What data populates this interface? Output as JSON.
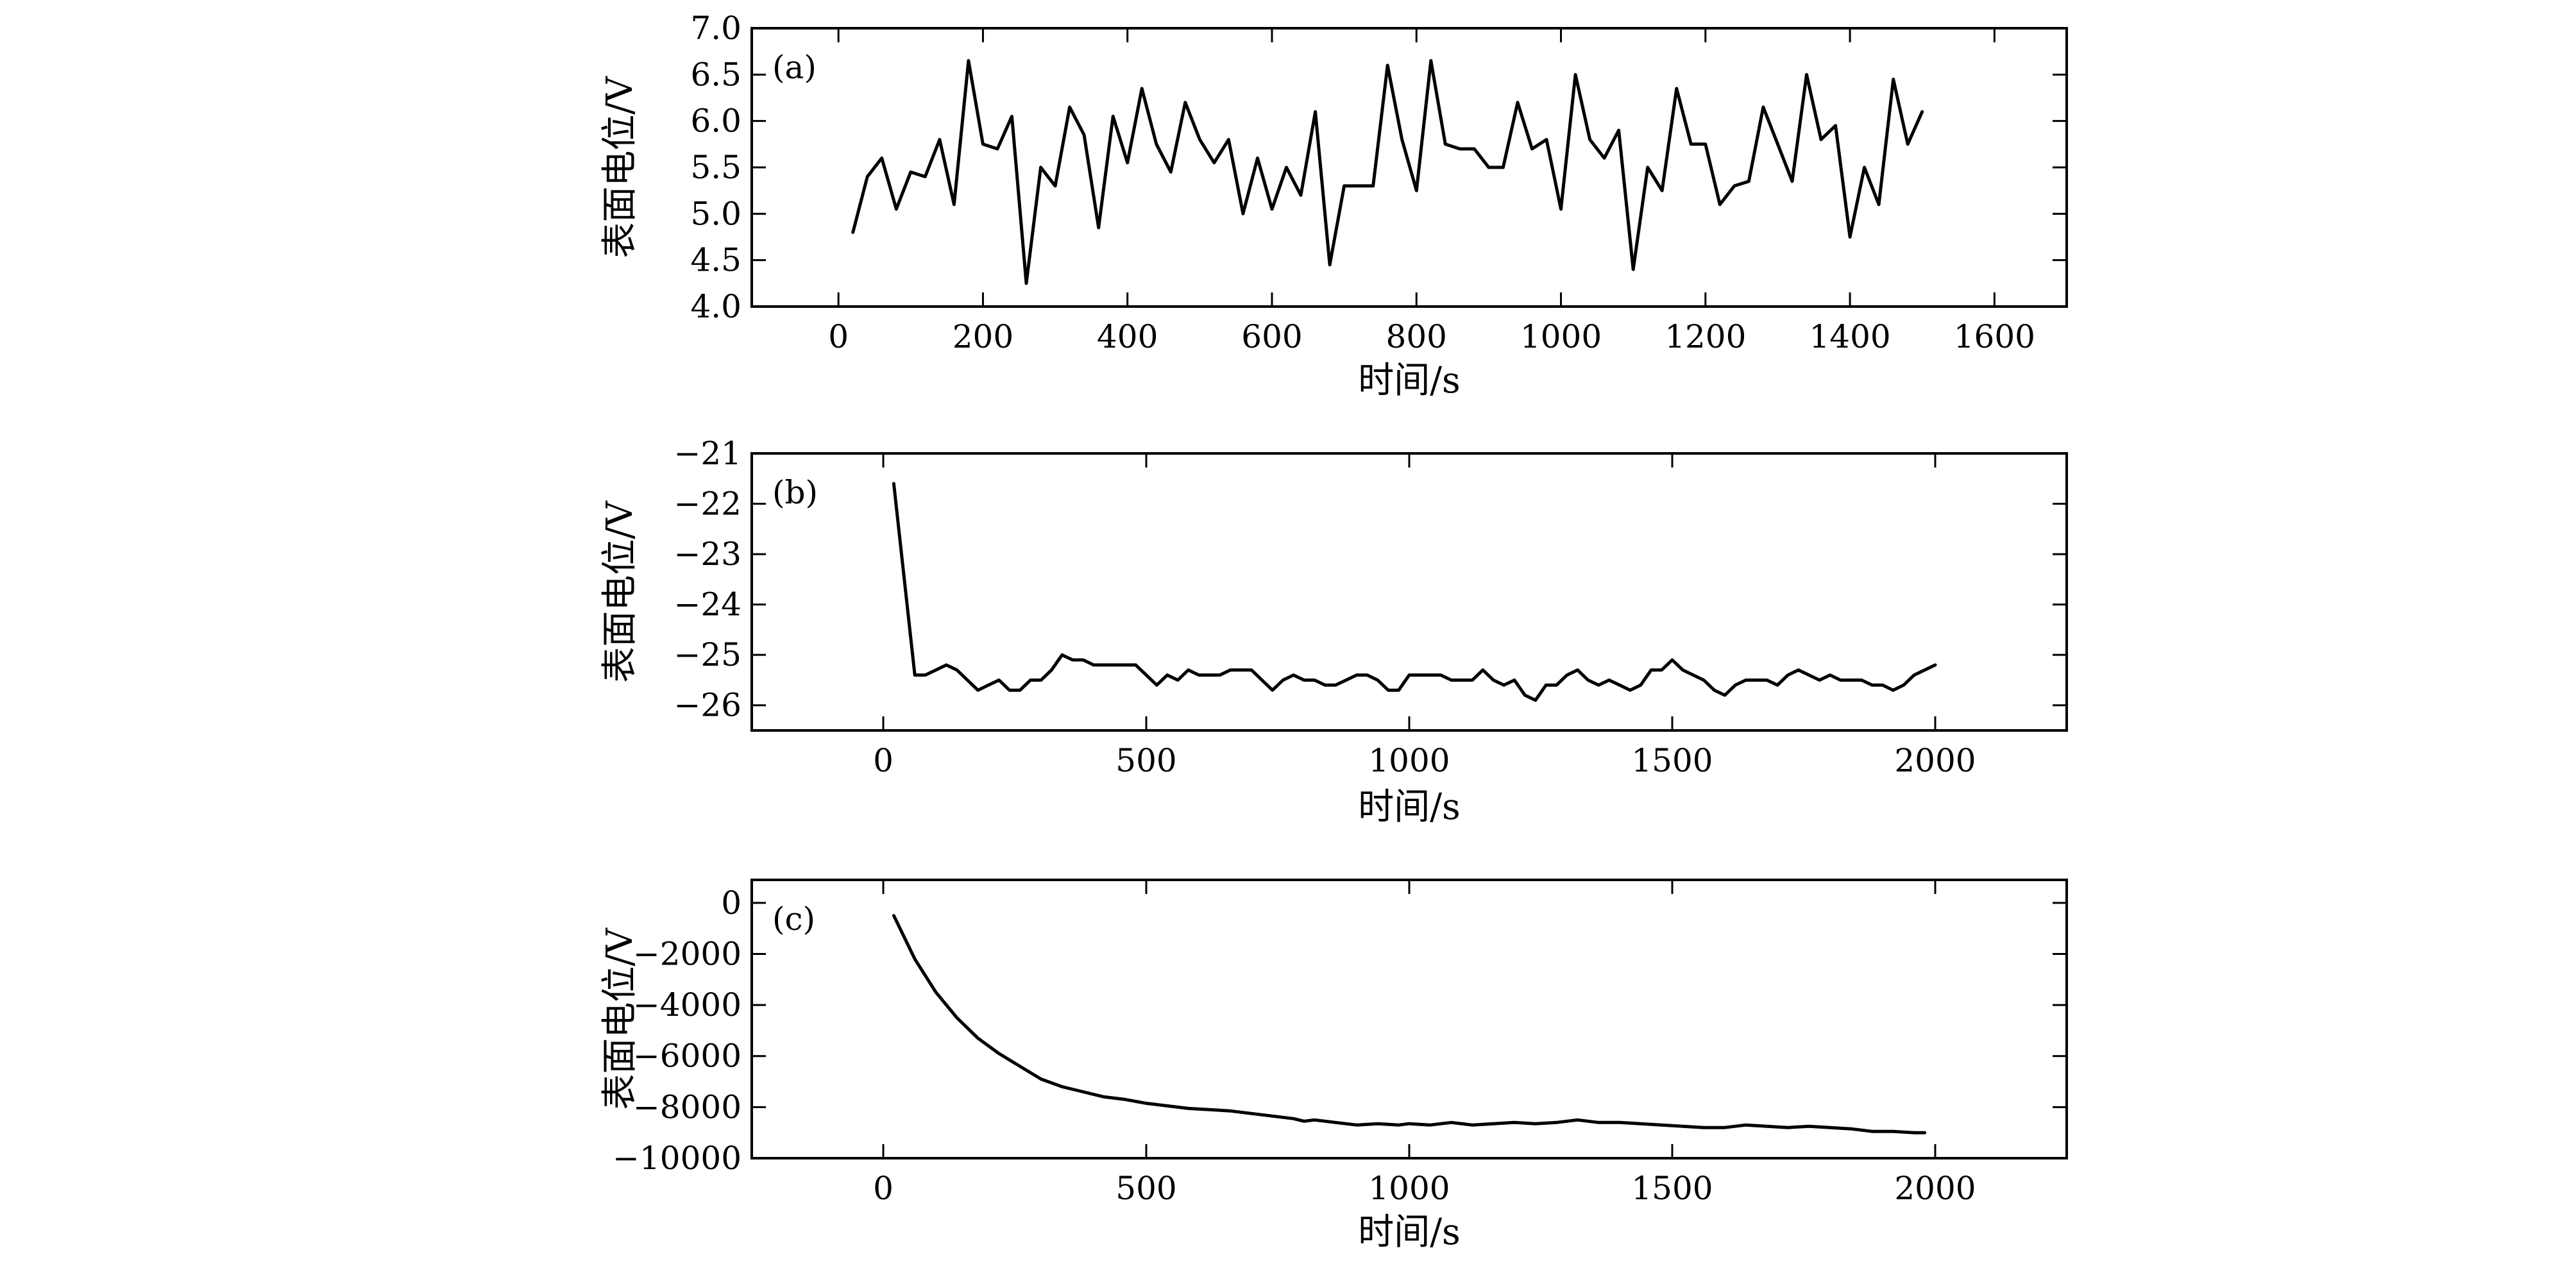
{
  "chart_data": [
    {
      "type": "line",
      "panel_label": "(a)",
      "xlabel": "时间/s",
      "ylabel": "表面电位/V",
      "xlim": [
        -120,
        1700
      ],
      "ylim": [
        4.0,
        7.0
      ],
      "xticks": [
        0,
        200,
        400,
        600,
        800,
        1000,
        1200,
        1400,
        1600
      ],
      "yticks": [
        4.0,
        4.5,
        5.0,
        5.5,
        6.0,
        6.5,
        7.0
      ],
      "xtick_labels": [
        "0",
        "200",
        "400",
        "600",
        "800",
        "1000",
        "1200",
        "1400",
        "1600"
      ],
      "ytick_labels": [
        "4.0",
        "4.5",
        "5.0",
        "5.5",
        "6.0",
        "6.5",
        "7.0"
      ],
      "grid": false,
      "series": [
        {
          "color": "#000000",
          "x": [
            20,
            40,
            60,
            80,
            100,
            120,
            140,
            160,
            180,
            200,
            220,
            240,
            260,
            280,
            300,
            320,
            340,
            360,
            380,
            400,
            420,
            440,
            460,
            480,
            500,
            520,
            540,
            560,
            580,
            600,
            620,
            640,
            660,
            680,
            700,
            720,
            740,
            760,
            780,
            800,
            820,
            840,
            860,
            880,
            900,
            920,
            940,
            960,
            980,
            1000,
            1020,
            1040,
            1060,
            1080,
            1100,
            1120,
            1140,
            1160,
            1180,
            1200,
            1220,
            1240,
            1260,
            1280,
            1300,
            1320,
            1340,
            1360,
            1380,
            1400,
            1420,
            1440,
            1460,
            1480,
            1500
          ],
          "y": [
            4.8,
            5.4,
            5.6,
            5.05,
            5.45,
            5.4,
            5.8,
            5.1,
            6.65,
            5.75,
            5.7,
            6.05,
            4.25,
            5.5,
            5.3,
            6.15,
            5.85,
            4.85,
            6.05,
            5.55,
            6.35,
            5.75,
            5.45,
            6.2,
            5.8,
            5.55,
            5.8,
            5.0,
            5.6,
            5.05,
            5.5,
            5.2,
            6.1,
            4.45,
            5.3,
            5.3,
            5.3,
            6.6,
            5.8,
            5.25,
            6.65,
            5.75,
            5.7,
            5.7,
            5.5,
            5.5,
            6.2,
            5.7,
            5.8,
            5.05,
            6.5,
            5.8,
            5.6,
            5.9,
            4.4,
            5.5,
            5.25,
            6.35,
            5.75,
            5.75,
            5.1,
            5.3,
            5.35,
            6.15,
            5.75,
            5.35,
            6.5,
            5.8,
            5.95,
            4.75,
            5.5,
            5.1,
            6.45,
            5.75,
            6.1
          ]
        }
      ]
    },
    {
      "type": "line",
      "panel_label": "(b)",
      "xlabel": "时间/s",
      "ylabel": "表面电位/V",
      "xlim": [
        -250,
        2250
      ],
      "ylim": [
        -26.5,
        -21
      ],
      "xticks": [
        0,
        500,
        1000,
        1500,
        2000
      ],
      "yticks": [
        -26,
        -25,
        -24,
        -23,
        -22,
        -21
      ],
      "xtick_labels": [
        "0",
        "500",
        "1000",
        "1500",
        "2000"
      ],
      "ytick_labels": [
        "−26",
        "−25",
        "−24",
        "−23",
        "−22",
        "−21"
      ],
      "grid": false,
      "series": [
        {
          "color": "#000000",
          "x": [
            20,
            40,
            60,
            80,
            100,
            120,
            140,
            160,
            180,
            200,
            220,
            240,
            260,
            280,
            300,
            320,
            340,
            360,
            380,
            400,
            420,
            440,
            460,
            480,
            500,
            520,
            540,
            560,
            580,
            600,
            620,
            640,
            660,
            680,
            700,
            720,
            740,
            760,
            780,
            800,
            820,
            840,
            860,
            880,
            900,
            920,
            940,
            960,
            980,
            1000,
            1020,
            1040,
            1060,
            1080,
            1100,
            1120,
            1140,
            1160,
            1180,
            1200,
            1220,
            1240,
            1260,
            1280,
            1300,
            1320,
            1340,
            1360,
            1380,
            1400,
            1420,
            1440,
            1460,
            1480,
            1500,
            1520,
            1540,
            1560,
            1580,
            1600,
            1620,
            1640,
            1660,
            1680,
            1700,
            1720,
            1740,
            1760,
            1780,
            1800,
            1820,
            1840,
            1860,
            1880,
            1900,
            1920,
            1940,
            1960,
            1980,
            2000
          ],
          "y": [
            -21.6,
            -23.5,
            -25.4,
            -25.4,
            -25.3,
            -25.2,
            -25.3,
            -25.5,
            -25.7,
            -25.6,
            -25.5,
            -25.7,
            -25.7,
            -25.5,
            -25.5,
            -25.3,
            -25.0,
            -25.1,
            -25.1,
            -25.2,
            -25.2,
            -25.2,
            -25.2,
            -25.2,
            -25.4,
            -25.6,
            -25.4,
            -25.5,
            -25.3,
            -25.4,
            -25.4,
            -25.4,
            -25.3,
            -25.3,
            -25.3,
            -25.5,
            -25.7,
            -25.5,
            -25.4,
            -25.5,
            -25.5,
            -25.6,
            -25.6,
            -25.5,
            -25.4,
            -25.4,
            -25.5,
            -25.7,
            -25.7,
            -25.4,
            -25.4,
            -25.4,
            -25.4,
            -25.5,
            -25.5,
            -25.5,
            -25.3,
            -25.5,
            -25.6,
            -25.5,
            -25.8,
            -25.9,
            -25.6,
            -25.6,
            -25.4,
            -25.3,
            -25.5,
            -25.6,
            -25.5,
            -25.6,
            -25.7,
            -25.6,
            -25.3,
            -25.3,
            -25.1,
            -25.3,
            -25.4,
            -25.5,
            -25.7,
            -25.8,
            -25.6,
            -25.5,
            -25.5,
            -25.5,
            -25.6,
            -25.4,
            -25.3,
            -25.4,
            -25.5,
            -25.4,
            -25.5,
            -25.5,
            -25.5,
            -25.6,
            -25.6,
            -25.7,
            -25.6,
            -25.4,
            -25.3,
            -25.2
          ]
        }
      ]
    },
    {
      "type": "line",
      "panel_label": "(c)",
      "xlabel": "时间/s",
      "ylabel": "表面电位/V",
      "xlim": [
        -250,
        2250
      ],
      "ylim": [
        -10000,
        900
      ],
      "xticks": [
        0,
        500,
        1000,
        1500,
        2000
      ],
      "yticks": [
        -10000,
        -8000,
        -6000,
        -4000,
        -2000,
        0
      ],
      "xtick_labels": [
        "0",
        "500",
        "1000",
        "1500",
        "2000"
      ],
      "ytick_labels": [
        "−10000",
        "−8000",
        "−6000",
        "−4000",
        "−2000",
        "0"
      ],
      "grid": false,
      "series": [
        {
          "color": "#000000",
          "x": [
            20,
            60,
            100,
            140,
            180,
            220,
            260,
            300,
            340,
            380,
            420,
            460,
            500,
            540,
            580,
            620,
            660,
            700,
            740,
            780,
            800,
            820,
            860,
            900,
            940,
            980,
            1000,
            1040,
            1080,
            1120,
            1160,
            1200,
            1240,
            1280,
            1320,
            1360,
            1400,
            1440,
            1480,
            1520,
            1560,
            1600,
            1640,
            1680,
            1720,
            1760,
            1800,
            1840,
            1880,
            1920,
            1960,
            1980
          ],
          "y": [
            -500,
            -2200,
            -3500,
            -4500,
            -5300,
            -5900,
            -6400,
            -6900,
            -7200,
            -7400,
            -7600,
            -7700,
            -7850,
            -7950,
            -8050,
            -8100,
            -8150,
            -8250,
            -8350,
            -8450,
            -8550,
            -8500,
            -8600,
            -8700,
            -8650,
            -8700,
            -8650,
            -8700,
            -8600,
            -8700,
            -8650,
            -8600,
            -8650,
            -8600,
            -8500,
            -8600,
            -8600,
            -8650,
            -8700,
            -8750,
            -8800,
            -8800,
            -8700,
            -8750,
            -8800,
            -8750,
            -8800,
            -8850,
            -8950,
            -8950,
            -9000,
            -9000
          ]
        }
      ]
    }
  ]
}
